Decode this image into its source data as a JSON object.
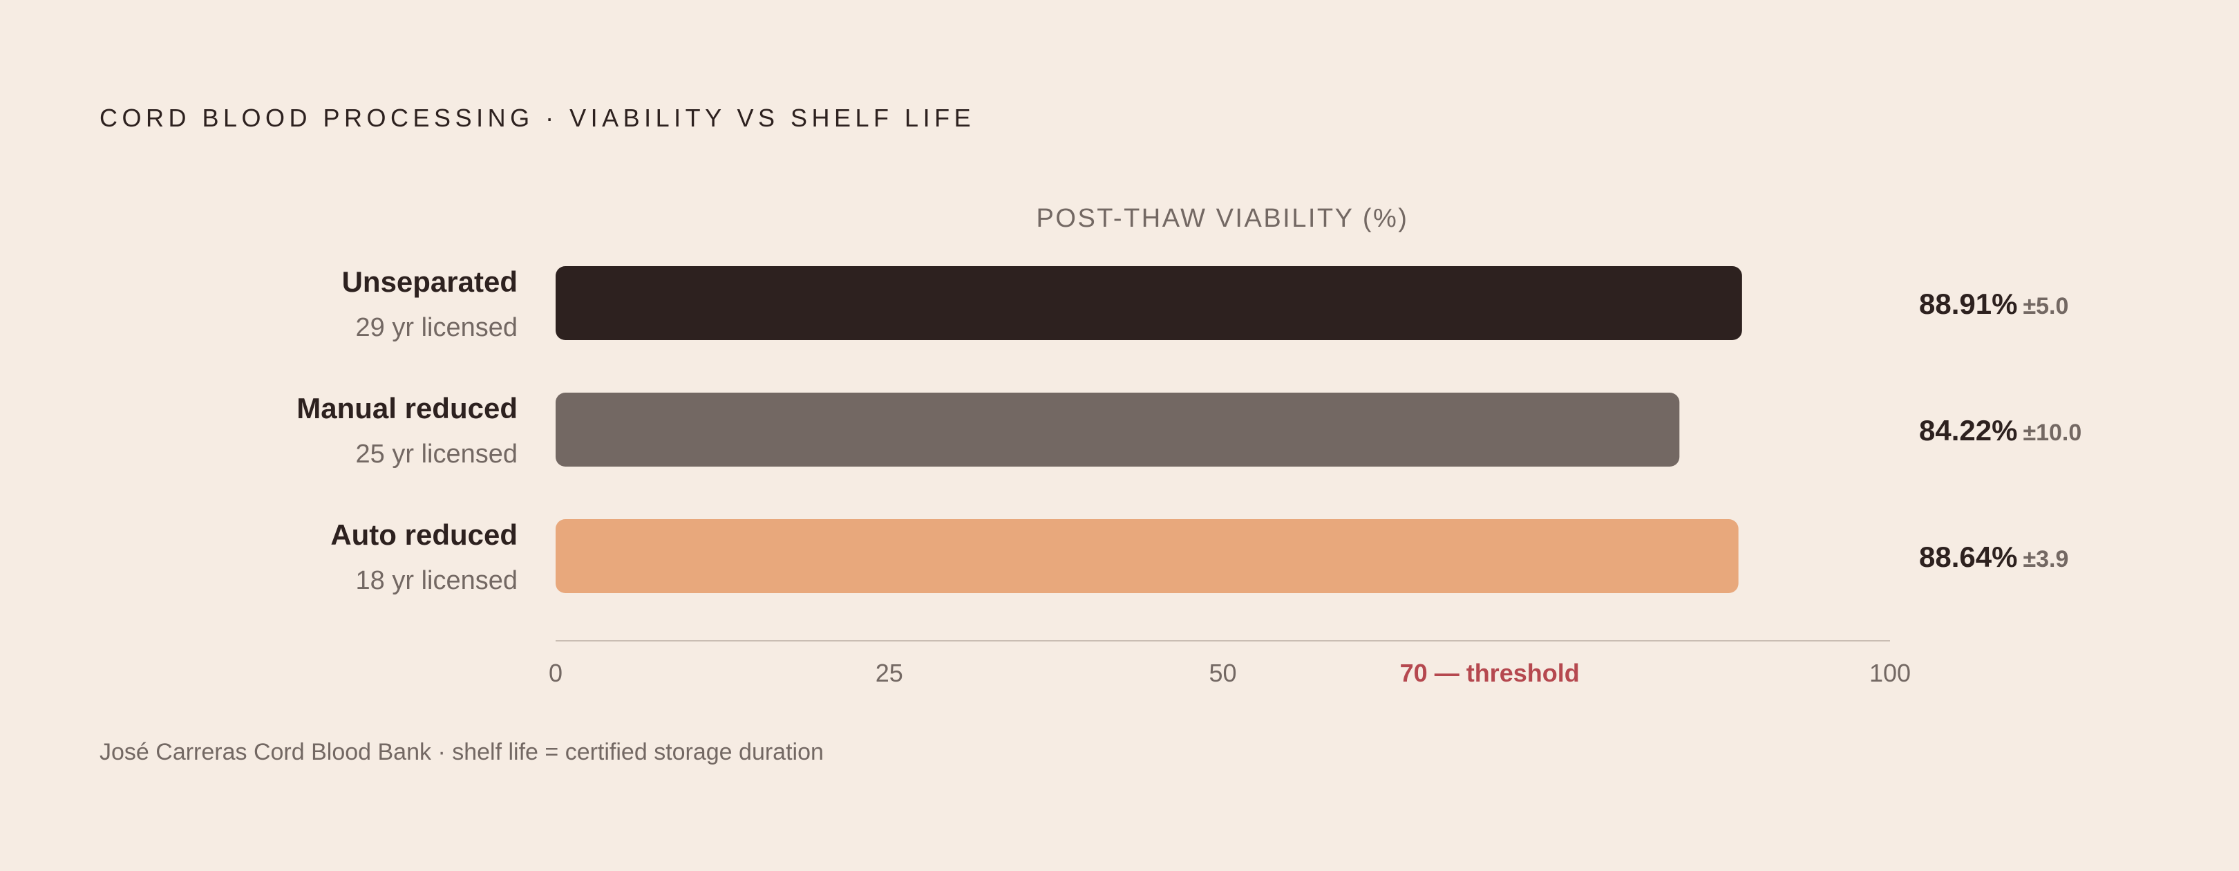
{
  "colors": {
    "background": "#F6ECE3",
    "ink": "#2D211F",
    "muted": "#736863",
    "axis_line": "#C9BDB3",
    "threshold": "#B5484F"
  },
  "title": "CORD BLOOD PROCESSING · VIABILITY VS SHELF LIFE",
  "footer": "José Carreras Cord Blood Bank · shelf life = certified storage duration",
  "chart_data": {
    "type": "bar",
    "orientation": "horizontal",
    "title": "CORD BLOOD PROCESSING · VIABILITY VS SHELF LIFE",
    "xlabel": "POST-THAW VIABILITY (%)",
    "ylabel": "",
    "xlim": [
      0,
      100
    ],
    "grid": false,
    "legend": "none",
    "categories": [
      "Unseparated",
      "Manual reduced",
      "Auto reduced"
    ],
    "subtitles": [
      "29 yr licensed",
      "25 yr licensed",
      "18 yr licensed"
    ],
    "values": [
      88.91,
      84.22,
      88.64
    ],
    "value_labels": [
      "88.91%",
      "84.22%",
      "88.64%"
    ],
    "errors": [
      5.0,
      10.0,
      3.9
    ],
    "error_labels": [
      "±5.0",
      "±10.0",
      "±3.9"
    ],
    "bar_colors": [
      "#2D211F",
      "#736863",
      "#E8A87C"
    ],
    "ticks": [
      {
        "value": 0,
        "label": "0"
      },
      {
        "value": 25,
        "label": "25"
      },
      {
        "value": 50,
        "label": "50"
      },
      {
        "value": 70,
        "label": "70 — threshold",
        "highlight": true
      },
      {
        "value": 100,
        "label": "100"
      }
    ],
    "threshold": {
      "value": 70,
      "label": "70 — threshold"
    }
  }
}
